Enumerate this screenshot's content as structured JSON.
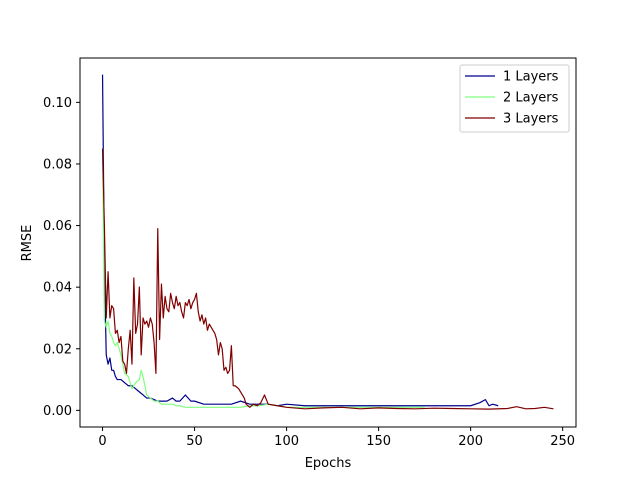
{
  "chart_data": {
    "type": "line",
    "xlabel": "Epochs",
    "ylabel": "RMSE",
    "xlim": [
      -12.25,
      257.25
    ],
    "ylim": [
      -0.0054,
      0.1144
    ],
    "xticks": [
      0,
      50,
      100,
      150,
      200,
      250
    ],
    "yticks": [
      0.0,
      0.02,
      0.04,
      0.06,
      0.08,
      0.1
    ],
    "xtick_labels": [
      "0",
      "50",
      "100",
      "150",
      "200",
      "250"
    ],
    "ytick_labels": [
      "0.00",
      "0.02",
      "0.04",
      "0.06",
      "0.08",
      "0.10"
    ],
    "grid": false,
    "legend_position": "top-right",
    "series": [
      {
        "name": "1 Layers",
        "color": "#00008b",
        "x": [
          0,
          1,
          2,
          3,
          4,
          5,
          6,
          7,
          8,
          9,
          10,
          12,
          14,
          16,
          18,
          20,
          22,
          24,
          26,
          28,
          30,
          32,
          35,
          38,
          40,
          42,
          45,
          48,
          50,
          55,
          60,
          65,
          70,
          75,
          80,
          85,
          90,
          95,
          100,
          110,
          120,
          130,
          140,
          150,
          160,
          170,
          180,
          190,
          200,
          205,
          208,
          210,
          212,
          215
        ],
        "values": [
          0.109,
          0.047,
          0.018,
          0.015,
          0.017,
          0.013,
          0.013,
          0.011,
          0.01,
          0.01,
          0.01,
          0.009,
          0.008,
          0.008,
          0.007,
          0.006,
          0.005,
          0.004,
          0.004,
          0.0035,
          0.003,
          0.003,
          0.003,
          0.004,
          0.003,
          0.003,
          0.005,
          0.003,
          0.003,
          0.002,
          0.002,
          0.002,
          0.002,
          0.003,
          0.002,
          0.002,
          0.002,
          0.0015,
          0.002,
          0.0015,
          0.0015,
          0.0015,
          0.0015,
          0.0015,
          0.0015,
          0.0015,
          0.0015,
          0.0015,
          0.0015,
          0.0025,
          0.0035,
          0.0015,
          0.002,
          0.0015
        ]
      },
      {
        "name": "2 Layers",
        "color": "#7fff7f",
        "x": [
          0,
          1,
          2,
          3,
          4,
          5,
          6,
          7,
          8,
          9,
          10,
          12,
          14,
          16,
          18,
          20,
          21,
          22,
          23,
          24,
          26,
          28,
          30,
          32,
          35,
          38,
          40,
          42,
          45,
          48,
          50,
          55,
          60,
          65,
          70,
          75,
          80,
          85,
          90,
          95,
          100,
          110,
          120,
          130,
          140,
          150,
          160,
          170,
          175
        ],
        "values": [
          0.085,
          0.029,
          0.027,
          0.029,
          0.025,
          0.024,
          0.022,
          0.021,
          0.022,
          0.02,
          0.018,
          0.012,
          0.011,
          0.007,
          0.009,
          0.01,
          0.013,
          0.011,
          0.008,
          0.005,
          0.004,
          0.003,
          0.003,
          0.002,
          0.002,
          0.002,
          0.0015,
          0.0015,
          0.001,
          0.001,
          0.001,
          0.001,
          0.001,
          0.001,
          0.001,
          0.001,
          0.0015,
          0.0015,
          0.002,
          0.0015,
          0.001,
          0.001,
          0.001,
          0.001,
          0.001,
          0.001,
          0.001,
          0.001,
          0.001
        ]
      },
      {
        "name": "3 Layers",
        "color": "#800000",
        "x": [
          0,
          1,
          2,
          3,
          4,
          5,
          6,
          7,
          8,
          9,
          10,
          11,
          12,
          13,
          14,
          15,
          16,
          17,
          18,
          19,
          20,
          21,
          22,
          23,
          24,
          25,
          26,
          27,
          28,
          29,
          30,
          31,
          32,
          33,
          34,
          35,
          36,
          37,
          38,
          39,
          40,
          41,
          42,
          43,
          44,
          45,
          46,
          47,
          48,
          49,
          50,
          51,
          52,
          53,
          54,
          55,
          56,
          57,
          58,
          59,
          60,
          61,
          62,
          63,
          64,
          65,
          66,
          67,
          68,
          69,
          70,
          71,
          72,
          73,
          74,
          75,
          76,
          77,
          78,
          80,
          82,
          84,
          86,
          88,
          90,
          95,
          100,
          110,
          120,
          130,
          140,
          150,
          160,
          170,
          180,
          190,
          200,
          210,
          220,
          225,
          230,
          235,
          240,
          245
        ],
        "values": [
          0.085,
          0.06,
          0.03,
          0.045,
          0.03,
          0.034,
          0.033,
          0.025,
          0.026,
          0.022,
          0.024,
          0.016,
          0.015,
          0.012,
          0.02,
          0.026,
          0.015,
          0.043,
          0.025,
          0.028,
          0.04,
          0.018,
          0.03,
          0.028,
          0.029,
          0.027,
          0.03,
          0.028,
          0.022,
          0.012,
          0.059,
          0.023,
          0.041,
          0.03,
          0.037,
          0.033,
          0.032,
          0.038,
          0.035,
          0.033,
          0.037,
          0.034,
          0.035,
          0.032,
          0.03,
          0.035,
          0.034,
          0.036,
          0.033,
          0.035,
          0.036,
          0.038,
          0.032,
          0.029,
          0.031,
          0.028,
          0.03,
          0.026,
          0.028,
          0.027,
          0.026,
          0.025,
          0.023,
          0.018,
          0.022,
          0.02,
          0.013,
          0.014,
          0.012,
          0.013,
          0.021,
          0.008,
          0.008,
          0.0075,
          0.007,
          0.006,
          0.005,
          0.004,
          0.002,
          0.001,
          0.002,
          0.0015,
          0.0025,
          0.005,
          0.002,
          0.0015,
          0.001,
          0.0005,
          0.0008,
          0.001,
          0.0005,
          0.0008,
          0.0006,
          0.0005,
          0.0007,
          0.0006,
          0.0005,
          0.0004,
          0.0006,
          0.0012,
          0.0005,
          0.0006,
          0.001,
          0.0005
        ]
      }
    ]
  }
}
